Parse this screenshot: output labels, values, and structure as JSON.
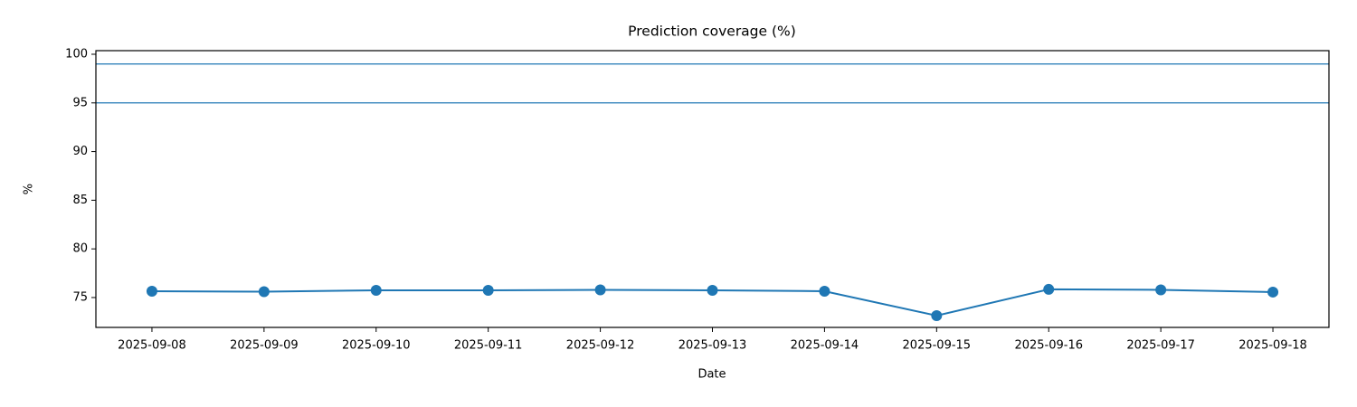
{
  "chart_data": {
    "type": "line",
    "title": "Prediction coverage (%)",
    "x_label": "Date",
    "y_label": "%",
    "categories": [
      "2025-09-08",
      "2025-09-09",
      "2025-09-10",
      "2025-09-11",
      "2025-09-12",
      "2025-09-13",
      "2025-09-14",
      "2025-09-15",
      "2025-09-16",
      "2025-09-17",
      "2025-09-18"
    ],
    "series": [
      {
        "color": "#1f77b4",
        "values": [
          75.65,
          75.6,
          75.74,
          75.74,
          75.79,
          75.74,
          75.65,
          73.14,
          75.84,
          75.79,
          75.56
        ]
      }
    ],
    "reference_lines": [
      99,
      95
    ],
    "reference_color": "#1f77b4",
    "ylim": [
      71.93,
      100.37
    ],
    "yticks": [
      75,
      80,
      85,
      90,
      95,
      100
    ],
    "grid": false
  }
}
